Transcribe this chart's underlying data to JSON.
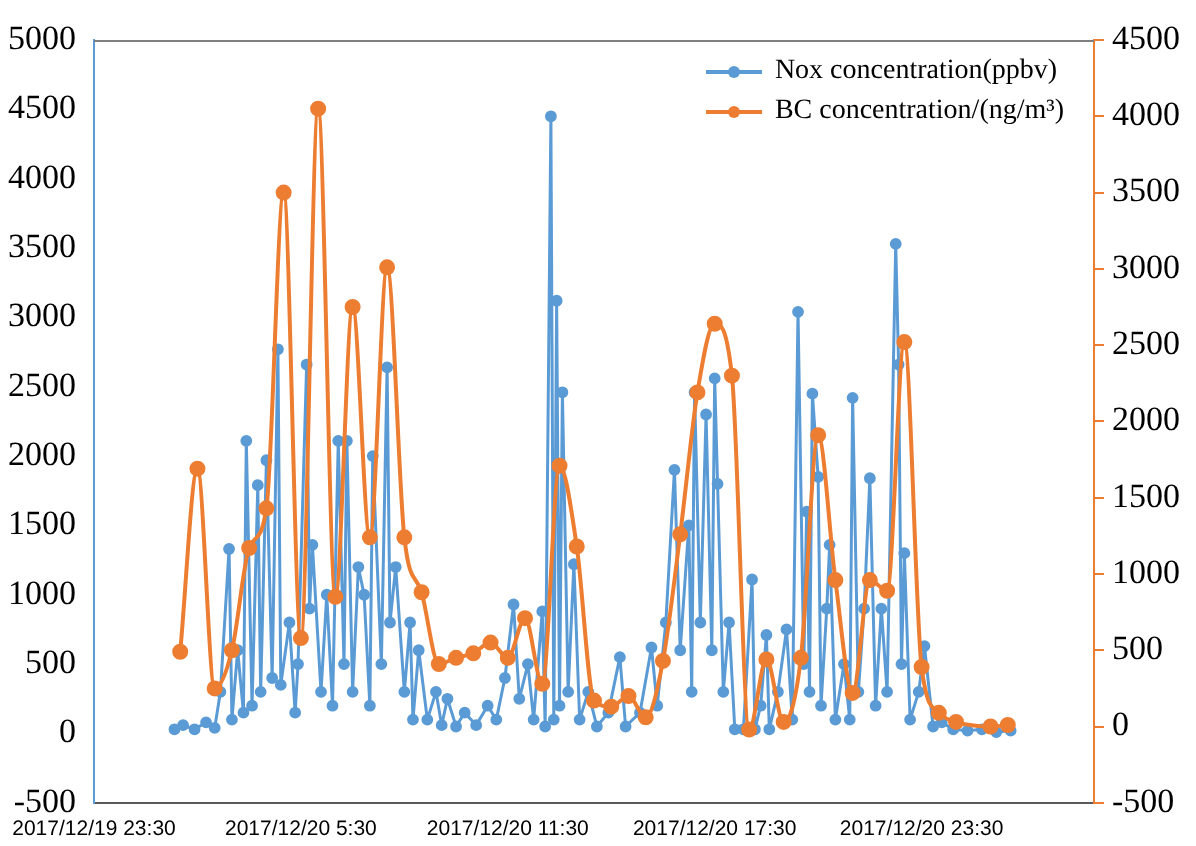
{
  "chart_data": {
    "type": "line",
    "xlim": [
      "2017-12-19T23:30",
      "2017-12-21T04:30"
    ],
    "xticks": [
      {
        "value": "2017-12-19T23:30",
        "label": "2017/12/19 23:30"
      },
      {
        "value": "2017-12-20T05:30",
        "label": "2017/12/20 5:30"
      },
      {
        "value": "2017-12-20T11:30",
        "label": "2017/12/20 11:30"
      },
      {
        "value": "2017-12-20T17:30",
        "label": "2017/12/20 17:30"
      },
      {
        "value": "2017-12-20T23:30",
        "label": "2017/12/20 23:30"
      }
    ],
    "ylim": [
      -500,
      5000
    ],
    "yticks": [
      -500,
      0,
      500,
      1000,
      1500,
      2000,
      2500,
      3000,
      3500,
      4000,
      4500,
      5000
    ],
    "y2lim": [
      -500,
      4500
    ],
    "y2ticks": [
      -500,
      0,
      500,
      1000,
      1500,
      2000,
      2500,
      3000,
      3500,
      4000,
      4500
    ],
    "legend": "top right",
    "marker": "circle",
    "grid": false,
    "series": [
      {
        "name": "Nox concentration(ppbv)",
        "color": "#5b9bd5",
        "x": [
          "2017-12-20T01:50",
          "2017-12-20T02:05",
          "2017-12-20T02:25",
          "2017-12-20T02:45",
          "2017-12-20T03:00",
          "2017-12-20T03:10",
          "2017-12-20T03:25",
          "2017-12-20T03:30",
          "2017-12-20T03:40",
          "2017-12-20T03:50",
          "2017-12-20T03:55",
          "2017-12-20T04:05",
          "2017-12-20T04:15",
          "2017-12-20T04:20",
          "2017-12-20T04:30",
          "2017-12-20T04:40",
          "2017-12-20T04:50",
          "2017-12-20T04:55",
          "2017-12-20T05:10",
          "2017-12-20T05:20",
          "2017-12-20T05:25",
          "2017-12-20T05:40",
          "2017-12-20T05:45",
          "2017-12-20T05:50",
          "2017-12-20T06:05",
          "2017-12-20T06:15",
          "2017-12-20T06:25",
          "2017-12-20T06:35",
          "2017-12-20T06:45",
          "2017-12-20T06:50",
          "2017-12-20T07:00",
          "2017-12-20T07:10",
          "2017-12-20T07:20",
          "2017-12-20T07:30",
          "2017-12-20T07:35",
          "2017-12-20T07:50",
          "2017-12-20T08:00",
          "2017-12-20T08:05",
          "2017-12-20T08:15",
          "2017-12-20T08:30",
          "2017-12-20T08:40",
          "2017-12-20T08:45",
          "2017-12-20T08:55",
          "2017-12-20T09:10",
          "2017-12-20T09:25",
          "2017-12-20T09:35",
          "2017-12-20T09:45",
          "2017-12-20T10:00",
          "2017-12-20T10:15",
          "2017-12-20T10:35",
          "2017-12-20T10:55",
          "2017-12-20T11:10",
          "2017-12-20T11:25",
          "2017-12-20T11:40",
          "2017-12-20T11:50",
          "2017-12-20T12:05",
          "2017-12-20T12:15",
          "2017-12-20T12:30",
          "2017-12-20T12:35",
          "2017-12-20T12:45",
          "2017-12-20T12:50",
          "2017-12-20T12:55",
          "2017-12-20T13:00",
          "2017-12-20T13:05",
          "2017-12-20T13:15",
          "2017-12-20T13:25",
          "2017-12-20T13:35",
          "2017-12-20T13:50",
          "2017-12-20T14:05",
          "2017-12-20T14:25",
          "2017-12-20T14:45",
          "2017-12-20T14:55",
          "2017-12-20T15:20",
          "2017-12-20T15:40",
          "2017-12-20T15:50",
          "2017-12-20T16:05",
          "2017-12-20T16:20",
          "2017-12-20T16:30",
          "2017-12-20T16:45",
          "2017-12-20T16:50",
          "2017-12-20T16:55",
          "2017-12-20T17:05",
          "2017-12-20T17:15",
          "2017-12-20T17:25",
          "2017-12-20T17:30",
          "2017-12-20T17:35",
          "2017-12-20T17:45",
          "2017-12-20T17:55",
          "2017-12-20T18:05",
          "2017-12-20T18:20",
          "2017-12-20T18:35",
          "2017-12-20T18:40",
          "2017-12-20T18:50",
          "2017-12-20T19:00",
          "2017-12-20T19:05",
          "2017-12-20T19:20",
          "2017-12-20T19:35",
          "2017-12-20T19:45",
          "2017-12-20T19:55",
          "2017-12-20T20:05",
          "2017-12-20T20:10",
          "2017-12-20T20:15",
          "2017-12-20T20:20",
          "2017-12-20T20:30",
          "2017-12-20T20:35",
          "2017-12-20T20:45",
          "2017-12-20T20:50",
          "2017-12-20T21:00",
          "2017-12-20T21:15",
          "2017-12-20T21:25",
          "2017-12-20T21:30",
          "2017-12-20T21:40",
          "2017-12-20T21:50",
          "2017-12-20T22:00",
          "2017-12-20T22:10",
          "2017-12-20T22:20",
          "2017-12-20T22:30",
          "2017-12-20T22:45",
          "2017-12-20T22:50",
          "2017-12-20T22:55",
          "2017-12-20T23:00",
          "2017-12-20T23:10",
          "2017-12-20T23:25",
          "2017-12-20T23:35",
          "2017-12-20T23:50",
          "2017-12-21T00:05",
          "2017-12-21T00:25",
          "2017-12-21T00:50",
          "2017-12-21T01:15",
          "2017-12-21T01:40",
          "2017-12-21T02:05"
        ],
        "values": [
          30,
          60,
          30,
          80,
          40,
          300,
          1330,
          100,
          600,
          150,
          2110,
          200,
          1790,
          300,
          1970,
          400,
          2770,
          350,
          800,
          150,
          500,
          2660,
          900,
          1360,
          300,
          1000,
          200,
          2110,
          500,
          2110,
          300,
          1200,
          1000,
          200,
          2000,
          500,
          2640,
          800,
          1200,
          300,
          800,
          100,
          600,
          100,
          300,
          60,
          250,
          50,
          150,
          60,
          200,
          100,
          400,
          930,
          250,
          500,
          100,
          880,
          50,
          4450,
          100,
          3120,
          200,
          2460,
          300,
          1220,
          100,
          300,
          50,
          150,
          550,
          50,
          150,
          620,
          200,
          800,
          1900,
          600,
          1500,
          300,
          2460,
          800,
          2300,
          600,
          2560,
          1800,
          300,
          800,
          30,
          30,
          1110,
          30,
          200,
          710,
          30,
          300,
          750,
          100,
          3040,
          500,
          1600,
          300,
          2450,
          1850,
          200,
          900,
          1360,
          100,
          500,
          100,
          2420,
          300,
          900,
          1840,
          200,
          900,
          300,
          3530,
          2660,
          500,
          1300,
          100,
          300,
          630,
          50,
          80,
          30,
          20,
          30,
          10,
          20
        ]
      },
      {
        "name": "BC concentration/(ng/m³)",
        "color": "#ed7d31",
        "axis": "y2",
        "x": [
          "2017-12-20T02:00",
          "2017-12-20T02:30",
          "2017-12-20T03:00",
          "2017-12-20T03:30",
          "2017-12-20T04:00",
          "2017-12-20T04:30",
          "2017-12-20T05:00",
          "2017-12-20T05:30",
          "2017-12-20T06:00",
          "2017-12-20T06:30",
          "2017-12-20T07:00",
          "2017-12-20T07:30",
          "2017-12-20T08:00",
          "2017-12-20T08:30",
          "2017-12-20T09:00",
          "2017-12-20T09:30",
          "2017-12-20T10:00",
          "2017-12-20T10:30",
          "2017-12-20T11:00",
          "2017-12-20T11:30",
          "2017-12-20T12:00",
          "2017-12-20T12:30",
          "2017-12-20T13:00",
          "2017-12-20T13:30",
          "2017-12-20T14:00",
          "2017-12-20T14:30",
          "2017-12-20T15:00",
          "2017-12-20T15:30",
          "2017-12-20T16:00",
          "2017-12-20T16:30",
          "2017-12-20T17:00",
          "2017-12-20T17:30",
          "2017-12-20T18:00",
          "2017-12-20T18:30",
          "2017-12-20T19:00",
          "2017-12-20T19:30",
          "2017-12-20T20:00",
          "2017-12-20T20:30",
          "2017-12-20T21:00",
          "2017-12-20T21:30",
          "2017-12-20T22:00",
          "2017-12-20T22:30",
          "2017-12-20T23:00",
          "2017-12-20T23:30",
          "2017-12-21T00:00",
          "2017-12-21T00:30",
          "2017-12-21T01:30",
          "2017-12-21T02:00"
        ],
        "values": [
          490,
          1690,
          250,
          500,
          1170,
          1430,
          3500,
          580,
          4050,
          850,
          2750,
          1240,
          3010,
          1240,
          880,
          410,
          450,
          480,
          550,
          450,
          710,
          280,
          1710,
          1180,
          170,
          130,
          200,
          60,
          430,
          1260,
          2190,
          2640,
          2300,
          -20,
          440,
          30,
          450,
          1910,
          960,
          220,
          960,
          890,
          2520,
          390,
          90,
          30,
          0,
          10
        ]
      }
    ]
  }
}
